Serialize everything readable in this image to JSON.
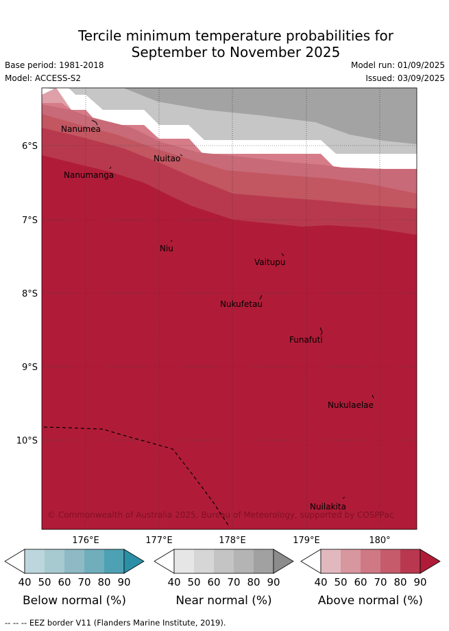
{
  "title": {
    "line1": "Tercile minimum temperature probabilities for",
    "line2": "September to November 2025"
  },
  "meta": {
    "base_period": "Base period: 1981-2018",
    "model": "Model: ACCESS-S2",
    "model_run": "Model run: 01/09/2025",
    "issued": "Issued: 03/09/2025"
  },
  "map": {
    "lat_labels": [
      "6°S",
      "7°S",
      "8°S",
      "9°S",
      "10°S"
    ],
    "lon_labels": [
      "176°E",
      "177°E",
      "178°E",
      "179°E",
      "180°"
    ],
    "islands": [
      {
        "name": "Nanumea"
      },
      {
        "name": "Nuitao"
      },
      {
        "name": "Nanumanga"
      },
      {
        "name": "Niu"
      },
      {
        "name": "Vaitupu"
      },
      {
        "name": "Nukufetau"
      },
      {
        "name": "Funafuti"
      },
      {
        "name": "Nukulaelae"
      },
      {
        "name": "Nuilakita"
      }
    ],
    "copyright": "© Commonwealth of Australia 2025, Bureau of Meteorology, supported by COSPPac"
  },
  "legends": [
    {
      "label": "Below normal (%)",
      "ticks": [
        "40",
        "50",
        "60",
        "70",
        "80",
        "90"
      ],
      "colors": [
        "#bdd6dd",
        "#a7c9d0",
        "#8dbac5",
        "#70aebc",
        "#4ea1b3",
        "#2b8fa6"
      ]
    },
    {
      "label": "Near normal (%)",
      "ticks": [
        "40",
        "50",
        "60",
        "70",
        "80",
        "90"
      ],
      "colors": [
        "#e6e6e6",
        "#d6d6d6",
        "#c4c4c4",
        "#b4b4b4",
        "#a1a1a1",
        "#8c8c8c"
      ]
    },
    {
      "label": "Above normal (%)",
      "ticks": [
        "40",
        "50",
        "60",
        "70",
        "80",
        "90"
      ],
      "colors": [
        "#e2b8bf",
        "#d8969f",
        "#cf7985",
        "#c55b6b",
        "#b9384f",
        "#b01c38"
      ]
    }
  ],
  "footer": "--  --  -- EEZ border V11 (Flanders Marine Institute, 2019)."
}
